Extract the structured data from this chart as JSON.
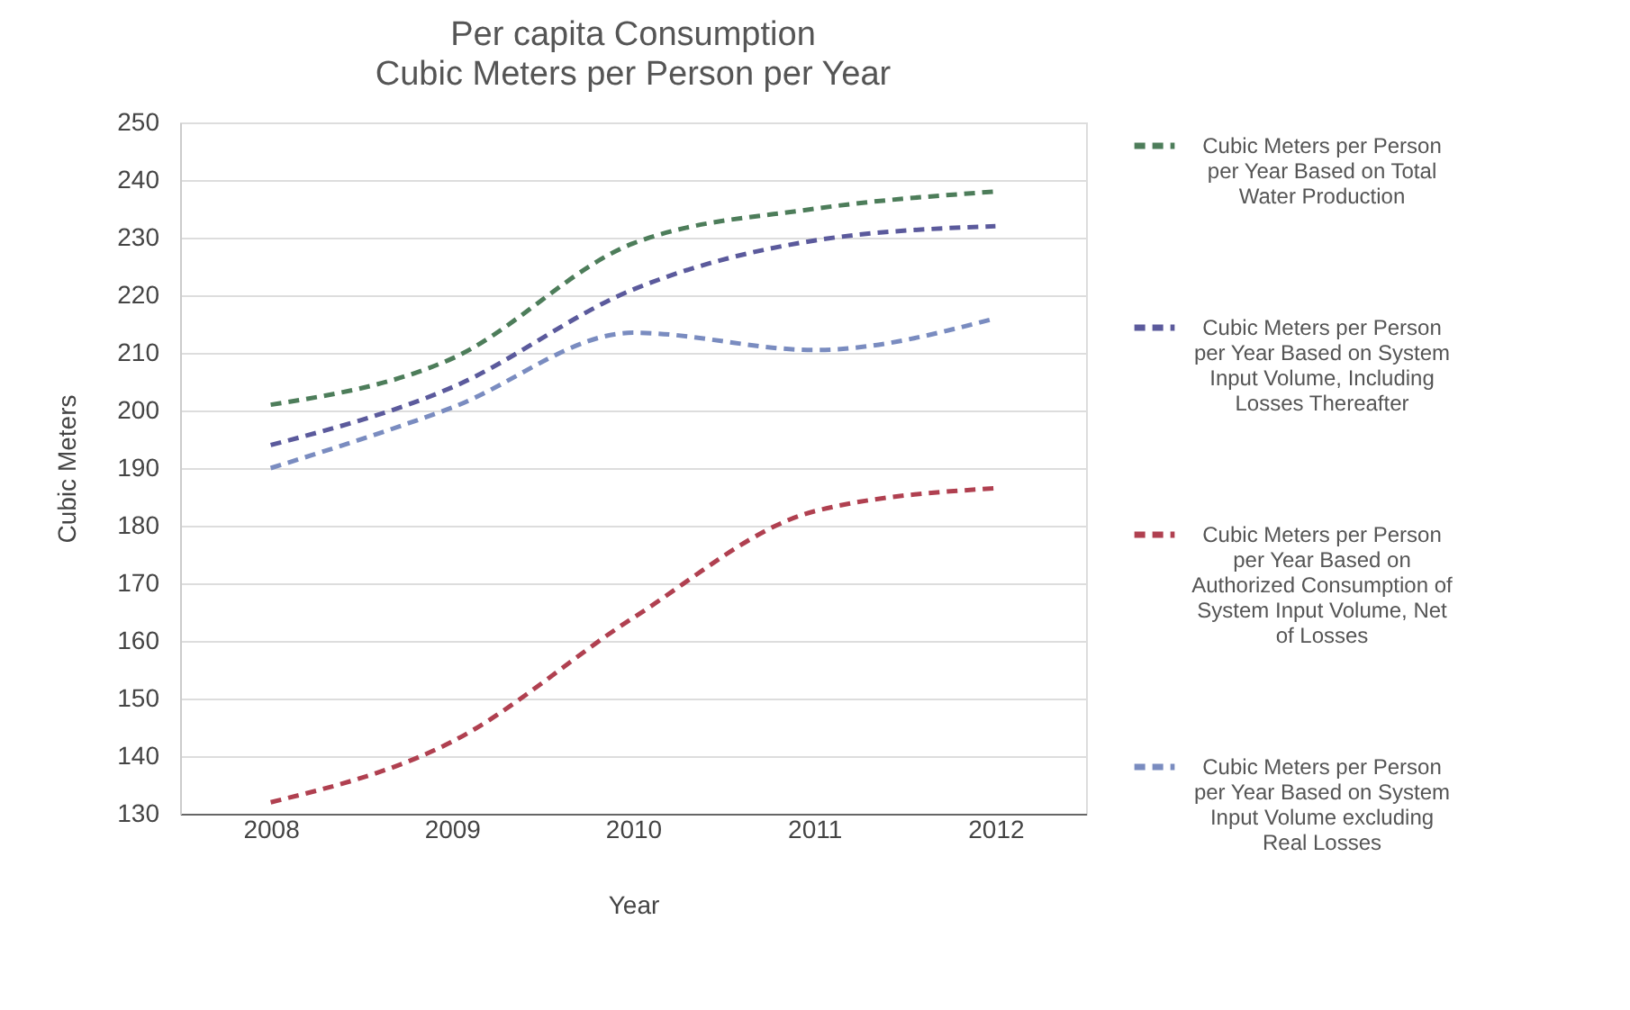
{
  "chart_data": {
    "type": "line",
    "title": "Per capita Consumption",
    "subtitle": "Cubic Meters per Person per Year",
    "xlabel": "Year",
    "ylabel": "Cubic Meters",
    "categories": [
      "2008",
      "2009",
      "2010",
      "2011",
      "2012"
    ],
    "series": [
      {
        "name": "Cubic Meters per Person per Year Based on Total Water Production",
        "color": "#4d7d5a",
        "values": [
          201,
          209,
          229,
          235,
          238
        ]
      },
      {
        "name": "Cubic Meters per Person per Year Based on System Input Volume, Including Losses Thereafter",
        "color": "#5b5a9c",
        "values": [
          194,
          204,
          221,
          229.5,
          232
        ]
      },
      {
        "name": "Cubic Meters per Person per Year Based on Authorized Consumption of System Input Volume, Net of Losses",
        "color": "#b04050",
        "values": [
          132,
          142.5,
          164,
          182.5,
          186.5
        ]
      },
      {
        "name": "Cubic Meters per Person per Year Based on System Input Volume excluding Real Losses",
        "color": "#7a8cc0",
        "values": [
          190,
          200.5,
          213.5,
          210.5,
          216
        ]
      }
    ],
    "ylim": [
      130,
      250
    ],
    "yticks": [
      130,
      140,
      150,
      160,
      170,
      180,
      190,
      200,
      210,
      220,
      230,
      240,
      250
    ],
    "grid": "y",
    "legend": "right",
    "line_style": "dashed",
    "marker": "none"
  }
}
